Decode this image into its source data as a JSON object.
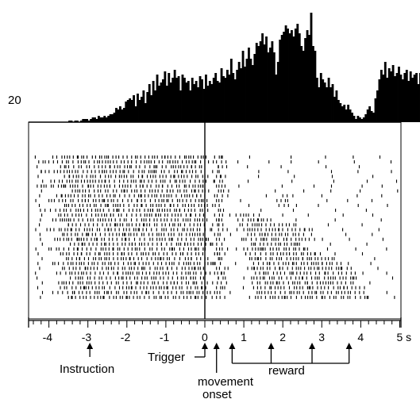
{
  "chart_data": [
    {
      "type": "bar",
      "title": "",
      "xlabel": "",
      "ylabel": "",
      "y_scale_label": "20",
      "xlim": [
        -4.45,
        5.0
      ],
      "ylim": [
        0,
        68
      ],
      "bin_width_s": 0.05,
      "series": [
        {
          "values": [
            0,
            0,
            0,
            0,
            0,
            0,
            0,
            0,
            0,
            0,
            0,
            0,
            0,
            0,
            0,
            0,
            0,
            0,
            0,
            1,
            1,
            0,
            1,
            1,
            0,
            1,
            2,
            2,
            2,
            1,
            2,
            3,
            3,
            2,
            4,
            3,
            3,
            4,
            3,
            4,
            5,
            5,
            6,
            9,
            8,
            10,
            8,
            9,
            13,
            14,
            15,
            14,
            17,
            10,
            18,
            14,
            16,
            20,
            12,
            19,
            24,
            17,
            26,
            20,
            30,
            23,
            25,
            27,
            32,
            23,
            31,
            25,
            28,
            33,
            28,
            29,
            20,
            30,
            28,
            25,
            26,
            20,
            28,
            24,
            26,
            22,
            29,
            27,
            21,
            30,
            23,
            26,
            24,
            28,
            31,
            26,
            25,
            34,
            29,
            28,
            33,
            30,
            40,
            31,
            27,
            33,
            38,
            34,
            45,
            35,
            40,
            47,
            40,
            36,
            43,
            50,
            48,
            51,
            56,
            49,
            54,
            44,
            47,
            51,
            44,
            30,
            38,
            52,
            55,
            57,
            61,
            59,
            56,
            58,
            54,
            59,
            62,
            56,
            48,
            45,
            53,
            58,
            55,
            69,
            48,
            45,
            28,
            22,
            31,
            27,
            25,
            22,
            28,
            22,
            24,
            16,
            20,
            14,
            12,
            10,
            11,
            8,
            11,
            8,
            6,
            4,
            2,
            4,
            3,
            2,
            3,
            5,
            8,
            10,
            7,
            6,
            15,
            20,
            27,
            33,
            30,
            38,
            28,
            34,
            32,
            36,
            29,
            31,
            35,
            30,
            27,
            31,
            33,
            26,
            32,
            28,
            30,
            31,
            24,
            31,
            29,
            27,
            23,
            27,
            24,
            29,
            26,
            30,
            27,
            25,
            24,
            22,
            27,
            21,
            20,
            25,
            18,
            20,
            19,
            15,
            17,
            14,
            20,
            15,
            17,
            11,
            13,
            8,
            13,
            9,
            7,
            9,
            8,
            6,
            6,
            4,
            3,
            3,
            2,
            1,
            2,
            1,
            1,
            0,
            0,
            2,
            1,
            0,
            1,
            1,
            0,
            0,
            0,
            0,
            0,
            0
          ]
        }
      ]
    },
    {
      "type": "scatter",
      "style": "raster",
      "xlim": [
        -4.45,
        5.0
      ],
      "xticks": [
        "-4",
        "-3",
        "-2",
        "-1",
        "0",
        "1",
        "2",
        "3",
        "4",
        "5 s"
      ],
      "trials": [
        {
          "epochs": [
            [
              -3.9,
              0.05
            ],
            [
              0.25,
              0.55
            ]
          ]
        },
        {
          "epochs": [
            [
              -4.15,
              0.1
            ],
            [
              0.3,
              0.55
            ]
          ]
        },
        {
          "epochs": [
            [
              -3.7,
              0.0
            ],
            [
              0.35,
              0.6
            ]
          ]
        },
        {
          "epochs": [
            [
              -4.2,
              -0.05
            ],
            [
              0.2,
              0.45
            ]
          ]
        },
        {
          "epochs": [
            [
              -3.6,
              0.15
            ],
            [
              0.3,
              0.55
            ]
          ]
        },
        {
          "epochs": [
            [
              -3.95,
              0.1
            ],
            [
              0.25,
              0.5
            ]
          ]
        },
        {
          "epochs": [
            [
              -4.3,
              0.05
            ],
            [
              0.3,
              0.6
            ]
          ]
        },
        {
          "epochs": [
            [
              -3.4,
              0.2
            ],
            [
              0.35,
              0.5
            ]
          ]
        },
        {
          "epochs": [
            [
              -3.8,
              0.0
            ],
            [
              0.25,
              0.55
            ],
            [
              2.0,
              2.15
            ]
          ]
        },
        {
          "epochs": [
            [
              -4.0,
              0.1
            ],
            [
              0.3,
              0.5
            ],
            [
              1.85,
              2.1
            ]
          ]
        },
        {
          "epochs": [
            [
              -3.55,
              0.05
            ],
            [
              0.2,
              0.45
            ],
            [
              1.9,
              2.2
            ]
          ]
        },
        {
          "epochs": [
            [
              -4.1,
              0.15
            ],
            [
              0.35,
              0.55
            ]
          ]
        },
        {
          "epochs": [
            [
              -3.75,
              0.0
            ],
            [
              0.25,
              0.5
            ],
            [
              0.8,
              1.3
            ]
          ]
        },
        {
          "epochs": [
            [
              -3.9,
              0.1
            ],
            [
              0.3,
              0.55
            ],
            [
              0.85,
              1.7
            ]
          ]
        },
        {
          "epochs": [
            [
              -3.5,
              0.05
            ],
            [
              0.2,
              0.5
            ],
            [
              0.9,
              2.3
            ]
          ]
        },
        {
          "epochs": [
            [
              -4.05,
              0.2
            ],
            [
              0.35,
              0.6
            ],
            [
              1.0,
              2.8
            ]
          ]
        },
        {
          "epochs": [
            [
              -3.65,
              0.0
            ],
            [
              0.25,
              0.45
            ],
            [
              1.1,
              2.6
            ]
          ]
        },
        {
          "epochs": [
            [
              -3.85,
              0.1
            ],
            [
              0.3,
              0.55
            ],
            [
              0.95,
              2.9
            ]
          ]
        },
        {
          "epochs": [
            [
              -3.45,
              0.15
            ],
            [
              0.2,
              0.5
            ],
            [
              1.2,
              2.5
            ]
          ]
        },
        {
          "epochs": [
            [
              -4.0,
              0.05
            ],
            [
              0.3,
              0.6
            ],
            [
              1.0,
              2.7
            ]
          ]
        },
        {
          "epochs": [
            [
              -3.7,
              0.0
            ],
            [
              0.25,
              0.55
            ],
            [
              1.05,
              3.0
            ]
          ]
        },
        {
          "epochs": [
            [
              -3.55,
              0.1
            ],
            [
              0.35,
              0.5
            ],
            [
              1.15,
              3.3
            ]
          ]
        },
        {
          "epochs": [
            [
              -3.9,
              0.2
            ],
            [
              0.2,
              0.45
            ],
            [
              1.25,
              3.6
            ]
          ]
        },
        {
          "epochs": [
            [
              -3.6,
              0.05
            ],
            [
              0.3,
              0.55
            ],
            [
              1.1,
              3.8
            ]
          ]
        },
        {
          "epochs": [
            [
              -3.8,
              0.15
            ],
            [
              0.25,
              0.5
            ],
            [
              1.3,
              3.9
            ]
          ]
        },
        {
          "epochs": [
            [
              -3.45,
              0.0
            ],
            [
              0.35,
              0.6
            ],
            [
              1.2,
              4.0
            ]
          ]
        },
        {
          "epochs": [
            [
              -3.75,
              0.1
            ],
            [
              0.2,
              0.5
            ],
            [
              1.35,
              3.85
            ]
          ]
        },
        {
          "epochs": [
            [
              -3.6,
              0.05
            ],
            [
              0.3,
              0.55
            ],
            [
              1.25,
              4.1
            ]
          ]
        },
        {
          "epochs": [
            [
              -3.9,
              0.2
            ],
            [
              0.25,
              0.45
            ],
            [
              1.4,
              4.0
            ]
          ]
        },
        {
          "epochs": [
            [
              -3.5,
              0.1
            ],
            [
              0.3,
              0.6
            ],
            [
              1.3,
              4.2
            ]
          ]
        }
      ],
      "events": [
        {
          "label": "Instruction",
          "x": -2.95
        },
        {
          "label": "Trigger",
          "x": 0.0
        },
        {
          "label": "movement onset",
          "x": 0.3
        },
        {
          "label": "reward",
          "x": [
            0.7,
            1.7,
            2.75,
            3.7
          ]
        }
      ]
    }
  ],
  "labels": {
    "scale": "20",
    "instruction": "Instruction",
    "trigger": "Trigger",
    "movement_line1": "movement",
    "movement_line2": "onset",
    "reward": "reward"
  }
}
